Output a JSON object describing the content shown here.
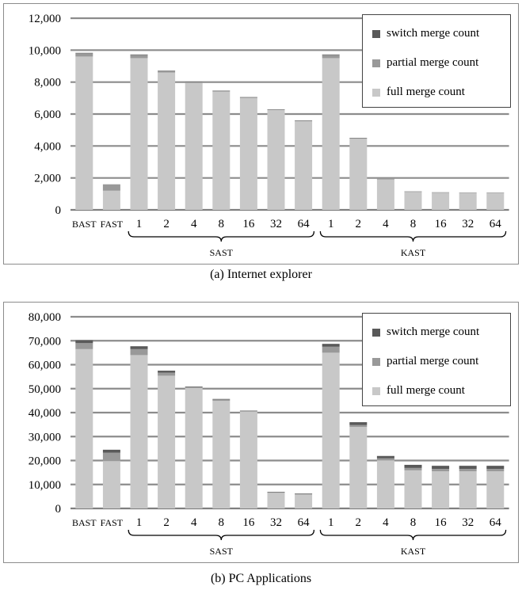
{
  "colors": {
    "switch": "#595959",
    "partial": "#999999",
    "full": "#c8c8c8",
    "grid": "#8c8c8c",
    "border": "#8c8c8c"
  },
  "chart_data": [
    {
      "type": "bar",
      "stacked": true,
      "caption": "(a) Internet explorer",
      "categories": [
        "BAST",
        "FAST",
        "1",
        "2",
        "4",
        "8",
        "16",
        "32",
        "64",
        "1",
        "2",
        "4",
        "8",
        "16",
        "32",
        "64"
      ],
      "groups": [
        {
          "label": "SAST",
          "start": 2,
          "end": 8
        },
        {
          "label": "KAST",
          "start": 9,
          "end": 15
        }
      ],
      "y_ticks": [
        "0",
        "2,000",
        "4,000",
        "6,000",
        "8,000",
        "10,000",
        "12,000"
      ],
      "ylim": [
        0,
        12000
      ],
      "legend_position": "top-right",
      "grid": true,
      "series": [
        {
          "name": "switch merge count",
          "color": "#595959",
          "values": [
            30,
            0,
            30,
            20,
            20,
            20,
            20,
            20,
            20,
            30,
            20,
            10,
            10,
            10,
            10,
            10
          ]
        },
        {
          "name": "partial merge count",
          "color": "#999999",
          "values": [
            200,
            400,
            200,
            100,
            60,
            50,
            40,
            30,
            30,
            200,
            40,
            30,
            30,
            20,
            20,
            20
          ]
        },
        {
          "name": "full merge count",
          "color": "#c8c8c8",
          "values": [
            9600,
            1200,
            9500,
            8600,
            7950,
            7400,
            7000,
            6250,
            5550,
            9500,
            4450,
            1900,
            1120,
            1070,
            1060,
            1060
          ]
        }
      ]
    },
    {
      "type": "bar",
      "stacked": true,
      "caption": "(b) PC Applications",
      "categories": [
        "BAST",
        "FAST",
        "1",
        "2",
        "4",
        "8",
        "16",
        "32",
        "64",
        "1",
        "2",
        "4",
        "8",
        "16",
        "32",
        "64"
      ],
      "groups": [
        {
          "label": "SAST",
          "start": 2,
          "end": 8
        },
        {
          "label": "KAST",
          "start": 9,
          "end": 15
        }
      ],
      "y_ticks": [
        "0",
        "10,000",
        "20,000",
        "30,000",
        "40,000",
        "50,000",
        "60,000",
        "70,000",
        "80,000"
      ],
      "ylim": [
        0,
        80000
      ],
      "legend_position": "top-right",
      "grid": true,
      "series": [
        {
          "name": "switch merge count",
          "color": "#595959",
          "values": [
            1200,
            1200,
            1200,
            800,
            200,
            200,
            150,
            150,
            150,
            1200,
            1200,
            1000,
            1300,
            1300,
            1300,
            1300
          ]
        },
        {
          "name": "partial merge count",
          "color": "#999999",
          "values": [
            2500,
            3500,
            2500,
            1300,
            400,
            600,
            300,
            300,
            300,
            2500,
            800,
            800,
            1000,
            1000,
            1000,
            1000
          ]
        },
        {
          "name": "full merge count",
          "color": "#c8c8c8",
          "values": [
            66500,
            19800,
            64000,
            55400,
            50300,
            44900,
            40400,
            6500,
            5800,
            65000,
            34000,
            20100,
            15900,
            15500,
            15500,
            15500
          ]
        }
      ]
    }
  ]
}
